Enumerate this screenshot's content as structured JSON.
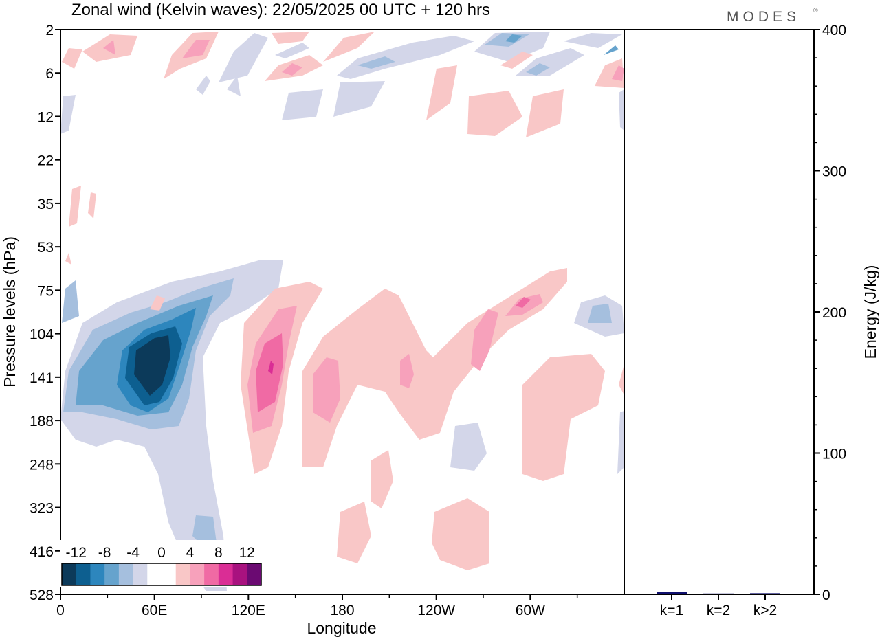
{
  "header": {
    "title": "Zonal wind (Kelvin waves):  22/05/2025  00 UTC  + 120 hrs",
    "brand": "MODES",
    "brand_mark": "®"
  },
  "chart_data": [
    {
      "type": "heatmap",
      "xlabel": "Longitude",
      "ylabel": "Pressure levels (hPa)",
      "x_ticks": [
        "0",
        "60E",
        "120E",
        "180",
        "120W",
        "60W"
      ],
      "y_ticks": [
        "2",
        "6",
        "12",
        "22",
        "35",
        "53",
        "75",
        "104",
        "141",
        "188",
        "248",
        "323",
        "416",
        "528"
      ],
      "colorbar": {
        "labels": [
          "-12",
          "-8",
          "-4",
          "0",
          "4",
          "8",
          "12"
        ],
        "colors": [
          "#0c3a5a",
          "#0d5f90",
          "#2d86bd",
          "#66a3cd",
          "#a5bfde",
          "#d3d6e9",
          "#ffffff",
          "#ffffff",
          "#f9c7c7",
          "#f7a1bb",
          "#f06aa4",
          "#da2d95",
          "#a8127f",
          "#6b0a72"
        ]
      },
      "features": [
        {
          "label": "negative core",
          "lon": 60,
          "hpa": 141,
          "max_value": -12
        },
        {
          "label": "positive core",
          "lon": 132,
          "hpa": 141,
          "max_value": 10
        },
        {
          "label": "positive",
          "lon": 170,
          "hpa": 150,
          "max_value": 8
        },
        {
          "label": "positive",
          "lon": 265,
          "hpa": 104,
          "max_value": 8
        },
        {
          "label": "positive",
          "lon": 235,
          "hpa": 141,
          "max_value": 8
        },
        {
          "label": "negative",
          "lon": 340,
          "hpa": 95,
          "max_value": -8
        }
      ]
    },
    {
      "type": "bar",
      "categories": [
        "k=1",
        "k=2",
        "k>2"
      ],
      "values": [
        1.5,
        0.6,
        0.8
      ],
      "ylabel": "Energy (J/kg)",
      "y_ticks": [
        0,
        100,
        200,
        300,
        400
      ],
      "ylim": [
        0,
        400
      ],
      "bar_color": "#10106e"
    }
  ]
}
